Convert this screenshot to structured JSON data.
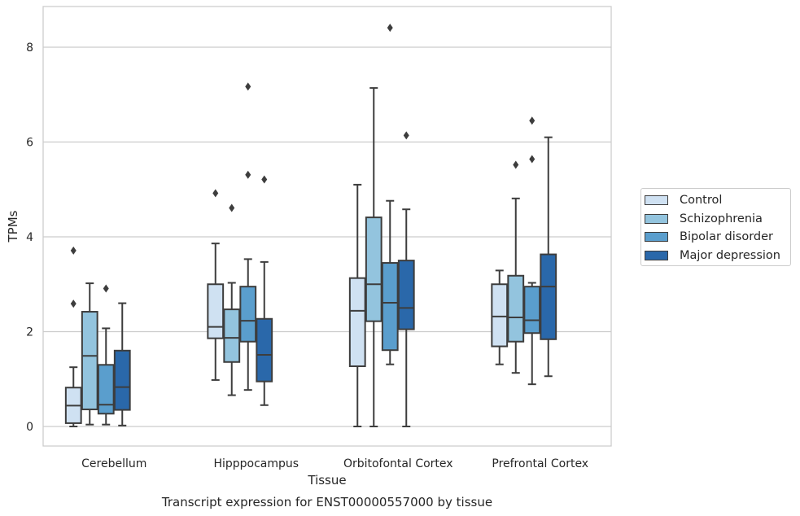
{
  "chart_data": {
    "type": "boxplot",
    "title": "Transcript expression for ENST00000557000 by tissue",
    "xlabel": "Tissue",
    "ylabel": "TPMs",
    "ylim": [
      -0.4,
      8.85
    ],
    "yticks": [
      0,
      2,
      4,
      6,
      8
    ],
    "grid": "horizontal",
    "legend_position": "outside right",
    "categories": [
      "Cerebellum",
      "Hipppocampus",
      "Orbitofontal Cortex",
      "Prefrontal Cortex"
    ],
    "series": [
      {
        "name": "Control",
        "color": "#cfe1f2",
        "boxes": [
          {
            "whisker_low": 0.0,
            "q1": 0.07,
            "median": 0.44,
            "q3": 0.82,
            "whisker_high": 1.25,
            "outliers": [
              2.59,
              3.71
            ]
          },
          {
            "whisker_low": 0.98,
            "q1": 1.86,
            "median": 2.1,
            "q3": 3.0,
            "whisker_high": 3.86,
            "outliers": [
              4.92
            ]
          },
          {
            "whisker_low": 0.0,
            "q1": 1.27,
            "median": 2.44,
            "q3": 3.13,
            "whisker_high": 5.1,
            "outliers": []
          },
          {
            "whisker_low": 1.31,
            "q1": 1.69,
            "median": 2.32,
            "q3": 3.0,
            "whisker_high": 3.29,
            "outliers": []
          }
        ]
      },
      {
        "name": "Schizophrenia",
        "color": "#93c4de",
        "boxes": [
          {
            "whisker_low": 0.04,
            "q1": 0.36,
            "median": 1.49,
            "q3": 2.42,
            "whisker_high": 3.02,
            "outliers": []
          },
          {
            "whisker_low": 0.66,
            "q1": 1.36,
            "median": 1.87,
            "q3": 2.47,
            "whisker_high": 3.03,
            "outliers": [
              4.61
            ]
          },
          {
            "whisker_low": 0.0,
            "q1": 2.22,
            "median": 3.0,
            "q3": 4.41,
            "whisker_high": 7.14,
            "outliers": []
          },
          {
            "whisker_low": 1.13,
            "q1": 1.79,
            "median": 2.3,
            "q3": 3.18,
            "whisker_high": 4.81,
            "outliers": [
              5.52
            ]
          }
        ]
      },
      {
        "name": "Bipolar disorder",
        "color": "#5a9ecd",
        "boxes": [
          {
            "whisker_low": 0.04,
            "q1": 0.27,
            "median": 0.46,
            "q3": 1.3,
            "whisker_high": 2.07,
            "outliers": [
              2.91
            ]
          },
          {
            "whisker_low": 0.77,
            "q1": 1.79,
            "median": 2.23,
            "q3": 2.95,
            "whisker_high": 3.53,
            "outliers": [
              5.31,
              7.17
            ]
          },
          {
            "whisker_low": 1.31,
            "q1": 1.61,
            "median": 2.61,
            "q3": 3.45,
            "whisker_high": 4.76,
            "outliers": [
              8.41
            ]
          },
          {
            "whisker_low": 0.89,
            "q1": 1.97,
            "median": 2.24,
            "q3": 2.95,
            "whisker_high": 3.03,
            "outliers": [
              5.64,
              6.45
            ]
          }
        ]
      },
      {
        "name": "Major depression",
        "color": "#2a68aa",
        "boxes": [
          {
            "whisker_low": 0.02,
            "q1": 0.35,
            "median": 0.83,
            "q3": 1.6,
            "whisker_high": 2.6,
            "outliers": []
          },
          {
            "whisker_low": 0.45,
            "q1": 0.95,
            "median": 1.51,
            "q3": 2.27,
            "whisker_high": 3.47,
            "outliers": [
              5.21
            ]
          },
          {
            "whisker_low": 0.0,
            "q1": 2.05,
            "median": 2.5,
            "q3": 3.5,
            "whisker_high": 4.58,
            "outliers": [
              6.14
            ]
          },
          {
            "whisker_low": 1.06,
            "q1": 1.84,
            "median": 2.95,
            "q3": 3.63,
            "whisker_high": 6.1,
            "outliers": []
          }
        ]
      }
    ]
  }
}
